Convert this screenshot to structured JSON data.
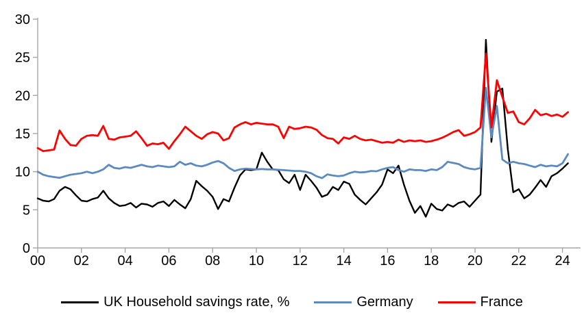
{
  "chart_data": {
    "type": "line",
    "title": "",
    "frequency": "quarterly",
    "x_range_years": [
      "2000",
      "2024"
    ],
    "ylim": [
      0,
      30
    ],
    "y_ticks": [
      0,
      5,
      10,
      15,
      20,
      25,
      30
    ],
    "x_tick_labels": [
      "00",
      "02",
      "04",
      "06",
      "08",
      "10",
      "12",
      "14",
      "16",
      "18",
      "20",
      "22",
      "24"
    ],
    "grid": "off",
    "legend_position": "bottom-center",
    "axis_color": "#A6A6A6",
    "text_color": "#000000",
    "background_color": "#FFFFFF",
    "periods": [
      "2000Q1",
      "2000Q2",
      "2000Q3",
      "2000Q4",
      "2001Q1",
      "2001Q2",
      "2001Q3",
      "2001Q4",
      "2002Q1",
      "2002Q2",
      "2002Q3",
      "2002Q4",
      "2003Q1",
      "2003Q2",
      "2003Q3",
      "2003Q4",
      "2004Q1",
      "2004Q2",
      "2004Q3",
      "2004Q4",
      "2005Q1",
      "2005Q2",
      "2005Q3",
      "2005Q4",
      "2006Q1",
      "2006Q2",
      "2006Q3",
      "2006Q4",
      "2007Q1",
      "2007Q2",
      "2007Q3",
      "2007Q4",
      "2008Q1",
      "2008Q2",
      "2008Q3",
      "2008Q4",
      "2009Q1",
      "2009Q2",
      "2009Q3",
      "2009Q4",
      "2010Q1",
      "2010Q2",
      "2010Q3",
      "2010Q4",
      "2011Q1",
      "2011Q2",
      "2011Q3",
      "2011Q4",
      "2012Q1",
      "2012Q2",
      "2012Q3",
      "2012Q4",
      "2013Q1",
      "2013Q2",
      "2013Q3",
      "2013Q4",
      "2014Q1",
      "2014Q2",
      "2014Q3",
      "2014Q4",
      "2015Q1",
      "2015Q2",
      "2015Q3",
      "2015Q4",
      "2016Q1",
      "2016Q2",
      "2016Q3",
      "2016Q4",
      "2017Q1",
      "2017Q2",
      "2017Q3",
      "2017Q4",
      "2018Q1",
      "2018Q2",
      "2018Q3",
      "2018Q4",
      "2019Q1",
      "2019Q2",
      "2019Q3",
      "2019Q4",
      "2020Q1",
      "2020Q2",
      "2020Q3",
      "2020Q4",
      "2021Q1",
      "2021Q2",
      "2021Q3",
      "2021Q4",
      "2022Q1",
      "2022Q2",
      "2022Q3",
      "2022Q4",
      "2023Q1",
      "2023Q2",
      "2023Q3",
      "2023Q4",
      "2024Q1",
      "2024Q2"
    ],
    "series": [
      {
        "name": "UK Household savings rate, %",
        "color": "#000000",
        "stroke_width": 2.4,
        "values": [
          6.5,
          6.2,
          6.1,
          6.4,
          7.5,
          8.0,
          7.7,
          6.9,
          6.2,
          6.1,
          6.4,
          6.6,
          7.5,
          6.5,
          5.9,
          5.5,
          5.6,
          5.9,
          5.3,
          5.8,
          5.7,
          5.4,
          5.9,
          6.1,
          5.5,
          6.3,
          5.7,
          5.2,
          6.4,
          8.8,
          8.1,
          7.5,
          6.7,
          5.1,
          6.4,
          6.1,
          7.9,
          9.5,
          10.3,
          10.2,
          10.3,
          12.5,
          11.3,
          10.3,
          10.2,
          9.0,
          8.5,
          9.6,
          7.6,
          9.6,
          8.8,
          7.9,
          6.7,
          7.0,
          8.0,
          7.6,
          8.7,
          8.4,
          7.0,
          6.3,
          5.7,
          6.5,
          7.3,
          8.3,
          10.3,
          9.8,
          10.8,
          8.3,
          6.2,
          4.6,
          5.5,
          4.1,
          5.8,
          5.1,
          4.9,
          5.7,
          5.4,
          5.9,
          6.1,
          5.4,
          6.2,
          7.0,
          27.3,
          13.9,
          20.5,
          20.9,
          12.9,
          7.3,
          7.7,
          6.5,
          7.0,
          7.9,
          8.9,
          8.0,
          9.4,
          9.8,
          10.4,
          11.1
        ]
      },
      {
        "name": "Germany",
        "color": "#5B8AC0",
        "stroke_width": 2.8,
        "values": [
          10.0,
          9.6,
          9.4,
          9.3,
          9.2,
          9.4,
          9.6,
          9.7,
          9.8,
          10.0,
          9.8,
          10.0,
          10.3,
          10.9,
          10.5,
          10.4,
          10.6,
          10.5,
          10.7,
          10.9,
          10.7,
          10.6,
          10.8,
          10.7,
          10.6,
          10.7,
          11.3,
          10.9,
          11.1,
          10.8,
          10.7,
          10.9,
          11.2,
          11.4,
          11.1,
          10.5,
          10.1,
          10.3,
          10.4,
          10.35,
          10.3,
          10.35,
          10.3,
          10.3,
          10.25,
          10.2,
          10.15,
          10.1,
          10.1,
          10.0,
          9.8,
          9.4,
          9.15,
          9.65,
          9.5,
          9.4,
          9.5,
          9.8,
          10.0,
          9.9,
          9.95,
          10.1,
          10.05,
          10.3,
          10.5,
          10.6,
          10.2,
          10.0,
          10.3,
          10.2,
          10.2,
          10.1,
          10.3,
          10.2,
          10.6,
          11.3,
          11.15,
          11.0,
          10.6,
          10.4,
          10.3,
          10.5,
          21.0,
          14.5,
          18.6,
          11.6,
          11.1,
          11.3,
          11.1,
          11.0,
          10.8,
          10.6,
          10.9,
          10.7,
          10.8,
          10.7,
          11.1,
          12.3
        ]
      },
      {
        "name": "France",
        "color": "#FF0000",
        "stroke_width": 2.8,
        "values": [
          13.1,
          12.7,
          12.8,
          12.9,
          15.4,
          14.3,
          13.5,
          13.4,
          14.3,
          14.7,
          14.8,
          14.7,
          16.0,
          14.3,
          14.2,
          14.5,
          14.6,
          14.7,
          15.3,
          14.4,
          13.4,
          13.7,
          13.6,
          13.8,
          13.0,
          14.0,
          14.9,
          15.9,
          15.3,
          14.7,
          14.3,
          14.9,
          15.2,
          15.0,
          14.1,
          14.4,
          15.8,
          16.2,
          16.5,
          16.2,
          16.4,
          16.3,
          16.2,
          16.2,
          15.9,
          14.4,
          15.9,
          15.6,
          15.7,
          15.9,
          15.8,
          15.5,
          14.8,
          14.4,
          14.3,
          13.7,
          14.5,
          14.3,
          14.7,
          14.3,
          14.1,
          14.2,
          14.0,
          13.8,
          13.9,
          13.8,
          14.2,
          13.9,
          14.1,
          14.0,
          14.1,
          13.9,
          14.0,
          14.2,
          14.45,
          14.8,
          15.2,
          15.45,
          14.7,
          14.9,
          15.2,
          15.8,
          25.5,
          15.8,
          22.0,
          19.8,
          17.7,
          17.9,
          16.5,
          16.2,
          17.0,
          18.1,
          17.4,
          17.6,
          17.3,
          17.5,
          17.2,
          17.8
        ]
      }
    ]
  },
  "legend": {
    "uk_label": "UK Household savings rate, %",
    "germany_label": "Germany",
    "france_label": "France"
  }
}
